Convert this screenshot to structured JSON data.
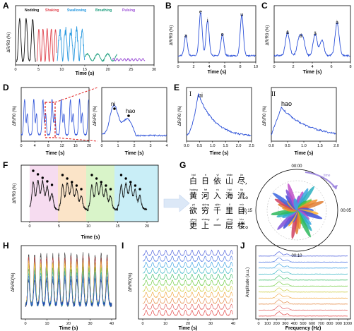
{
  "colors": {
    "blue": "#2a4fd8",
    "black": "#111111",
    "red": "#e0454f",
    "light_blue": "#2a9ae0",
    "green": "#1d9e7e",
    "purple": "#9b4fd6",
    "pink_bg": "#f6dcf0",
    "orange_bg": "#fbe4c8",
    "green_bg": "#d9f4c9",
    "cyan_bg": "#c9eef7",
    "dashed_red": "#e02020"
  },
  "panels": {
    "A": {
      "letter": "A",
      "ylabel": "ΔR/R0 (%)",
      "xlabel": "Time (s)",
      "legend": [
        "Nodding",
        "Shaking",
        "Swallowing",
        "Breathing",
        "Pulsing"
      ],
      "xticks": [
        "0",
        "5",
        "10",
        "15",
        "20",
        "25",
        "30"
      ]
    },
    "B": {
      "letter": "B",
      "ylabel": "ΔR/R0 (%)",
      "xlabel": "Time (s)",
      "vowels": [
        "a",
        "e",
        "i",
        "o",
        "u"
      ],
      "xticks": [
        "0",
        "2",
        "4",
        "6",
        "8",
        "10"
      ]
    },
    "C": {
      "letter": "C",
      "ylabel": "ΔR/R0 (%)",
      "xlabel": "Time (s)",
      "tones": [
        "ā",
        "á",
        "ǎ",
        "à"
      ],
      "xticks": [
        "0",
        "2",
        "4",
        "6",
        "8"
      ]
    },
    "D": {
      "letter": "D",
      "ylabel": "ΔR/R0 (%)",
      "xlabel": "Time (s)",
      "xticks": [
        "0",
        "4",
        "8",
        "12",
        "16",
        "20"
      ],
      "zoom_xticks": [
        "0",
        "1",
        "2",
        "3",
        "4"
      ],
      "zoom_xlabel": "Time (s)",
      "zoom_labels": [
        "ni",
        "hao"
      ]
    },
    "E": {
      "letter": "E",
      "ylabel": "ΔR/R0 (%)",
      "xlabel": "Time (s)",
      "sub1": "I",
      "sub1_word": "ni",
      "sub1_xticks": [
        "0.0",
        "0.5",
        "1.0",
        "1.5",
        "2.0",
        "2.5"
      ],
      "sub2": "II",
      "sub2_word": "hao",
      "sub2_xticks": [
        "0.0",
        "0.5",
        "1.0",
        "1.5",
        "2.0"
      ],
      "sub2_xlabel": "Time (s)"
    },
    "F": {
      "letter": "F",
      "ylabel": "ΔR/R0 (%)",
      "xlabel": "Time (s)",
      "xticks": [
        "0",
        "5",
        "10",
        "15",
        "20"
      ]
    },
    "G": {
      "letter": "G",
      "poem": [
        {
          "pinyin": [
            "bái",
            "rì",
            "yī",
            "shān",
            "jìn"
          ],
          "chars": [
            "白",
            "日",
            "依",
            "山",
            "尽,"
          ]
        },
        {
          "pinyin": [
            "huáng",
            "hé",
            "rù",
            "hǎi",
            "liú"
          ],
          "chars": [
            "黄",
            "河",
            "入",
            "海",
            "流。"
          ]
        },
        {
          "pinyin": [
            "yù",
            "qióng",
            "qiān",
            "lǐ",
            "mù"
          ],
          "chars": [
            "欲",
            "穷",
            "千",
            "里",
            "目,"
          ]
        },
        {
          "pinyin": [
            "gèng",
            "shàng",
            "yī",
            "céng",
            "lóu"
          ],
          "chars": [
            "更",
            "上",
            "一",
            "层",
            "楼。"
          ]
        }
      ],
      "polar_labels": [
        "00:00",
        "00:05",
        "00:10",
        "00:15"
      ],
      "arrow_label": "time"
    },
    "H": {
      "letter": "H",
      "ylabel": "ΔR/R0(%)",
      "xlabel": "Time (s)",
      "xticks": [
        "0",
        "10",
        "20",
        "30",
        "40"
      ]
    },
    "I": {
      "letter": "I",
      "ylabel": "ΔR/R0(%)",
      "xlabel": "Time (s)",
      "xticks": [
        "0",
        "10",
        "20",
        "30",
        "40"
      ]
    },
    "J": {
      "letter": "J",
      "ylabel": "Amplitude (a.u.)",
      "xlabel": "Frequency (Hz)",
      "xticks": [
        "0",
        "100",
        "200",
        "300",
        "400",
        "500",
        "600",
        "700",
        "800",
        "900",
        "1000"
      ]
    }
  },
  "chart_data": [
    {
      "type": "line",
      "panel": "A",
      "x": [
        0,
        1,
        2,
        3,
        4,
        5,
        6,
        7,
        8,
        9,
        10,
        11,
        12,
        13,
        14,
        15,
        16,
        17,
        18,
        19,
        20,
        21,
        22,
        23,
        24,
        25,
        26,
        27,
        28,
        29,
        30
      ],
      "series": [
        {
          "name": "Nodding",
          "color": "black",
          "values": [
            0,
            5,
            30,
            55,
            40,
            5,
            null,
            null,
            null,
            null,
            null,
            null,
            null,
            null,
            null,
            null,
            null,
            null,
            null,
            null,
            null,
            null,
            null,
            null,
            null,
            null,
            null,
            null,
            null,
            null,
            null
          ]
        },
        {
          "name": "Shaking",
          "color": "red",
          "values": [
            null,
            null,
            null,
            null,
            null,
            5,
            35,
            40,
            38,
            10,
            null,
            null,
            null,
            null,
            null,
            null,
            null,
            null,
            null,
            null,
            null,
            null,
            null,
            null,
            null,
            null,
            null,
            null,
            null,
            null,
            null
          ]
        },
        {
          "name": "Swallowing",
          "color": "light_blue",
          "values": [
            null,
            null,
            null,
            null,
            null,
            null,
            null,
            null,
            null,
            10,
            45,
            40,
            30,
            35,
            40,
            5,
            null,
            null,
            null,
            null,
            null,
            null,
            null,
            null,
            null,
            null,
            null,
            null,
            null,
            null,
            null
          ]
        },
        {
          "name": "Breathing",
          "color": "green",
          "values": [
            null,
            null,
            null,
            null,
            null,
            null,
            null,
            null,
            null,
            null,
            null,
            null,
            null,
            null,
            null,
            5,
            3,
            5,
            2,
            4,
            3,
            2,
            null,
            null,
            null,
            null,
            null,
            null,
            null,
            null,
            null
          ]
        },
        {
          "name": "Pulsing",
          "color": "purple",
          "values": [
            null,
            null,
            null,
            null,
            null,
            null,
            null,
            null,
            null,
            null,
            null,
            null,
            null,
            null,
            null,
            null,
            null,
            null,
            null,
            null,
            null,
            2,
            2,
            2,
            2,
            2,
            2,
            2,
            null,
            null,
            null
          ]
        }
      ]
    },
    {
      "type": "line",
      "panel": "B",
      "x": [
        0,
        1,
        2,
        3,
        4,
        5,
        6,
        7,
        8,
        9,
        10
      ],
      "series": [
        {
          "values": [
            5,
            30,
            5,
            60,
            10,
            35,
            5,
            55,
            5,
            40,
            5
          ]
        }
      ],
      "annotations": [
        "a",
        "e",
        "i",
        "o",
        "u"
      ]
    },
    {
      "type": "line",
      "panel": "C",
      "x": [
        0,
        1,
        2,
        3,
        4,
        5,
        6,
        7,
        8
      ],
      "series": [
        {
          "values": [
            5,
            30,
            35,
            25,
            30,
            38,
            8,
            42,
            5
          ]
        }
      ],
      "annotations": [
        "ā",
        "á",
        "ǎ",
        "à"
      ]
    }
  ]
}
